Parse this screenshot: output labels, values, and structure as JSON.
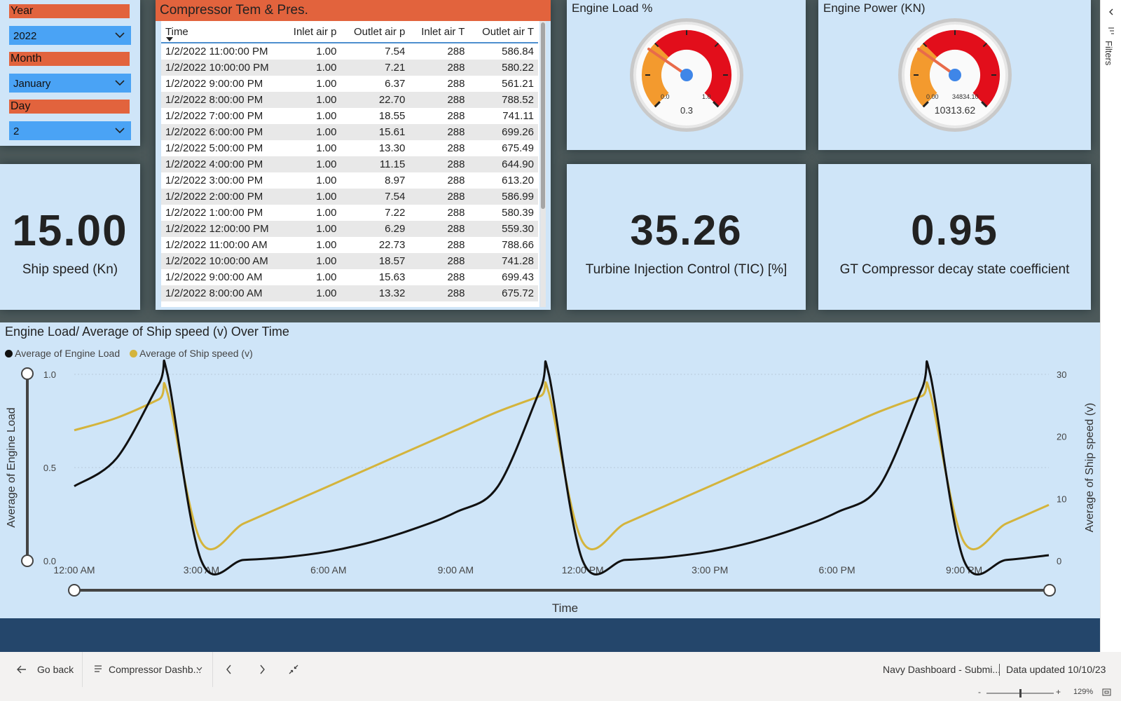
{
  "slicers": {
    "year_label": "Year",
    "year_value": "2022",
    "month_label": "Month",
    "month_value": "January",
    "day_label": "Day",
    "day_value": "2"
  },
  "ship_speed": {
    "value": "15.00",
    "label": "Ship speed (Kn)"
  },
  "compressor_table": {
    "title": "Compressor Tem & Pres.",
    "columns": [
      "Time",
      "Inlet air p",
      "Outlet air p",
      "Inlet air T",
      "Outlet air T"
    ],
    "rows": [
      [
        "1/2/2022 11:00:00 PM",
        "1.00",
        "7.54",
        "288",
        "586.84"
      ],
      [
        "1/2/2022 10:00:00 PM",
        "1.00",
        "7.21",
        "288",
        "580.22"
      ],
      [
        "1/2/2022 9:00:00 PM",
        "1.00",
        "6.37",
        "288",
        "561.21"
      ],
      [
        "1/2/2022 8:00:00 PM",
        "1.00",
        "22.70",
        "288",
        "788.52"
      ],
      [
        "1/2/2022 7:00:00 PM",
        "1.00",
        "18.55",
        "288",
        "741.11"
      ],
      [
        "1/2/2022 6:00:00 PM",
        "1.00",
        "15.61",
        "288",
        "699.26"
      ],
      [
        "1/2/2022 5:00:00 PM",
        "1.00",
        "13.30",
        "288",
        "675.49"
      ],
      [
        "1/2/2022 4:00:00 PM",
        "1.00",
        "11.15",
        "288",
        "644.90"
      ],
      [
        "1/2/2022 3:00:00 PM",
        "1.00",
        "8.97",
        "288",
        "613.20"
      ],
      [
        "1/2/2022 2:00:00 PM",
        "1.00",
        "7.54",
        "288",
        "586.99"
      ],
      [
        "1/2/2022 1:00:00 PM",
        "1.00",
        "7.22",
        "288",
        "580.39"
      ],
      [
        "1/2/2022 12:00:00 PM",
        "1.00",
        "6.29",
        "288",
        "559.30"
      ],
      [
        "1/2/2022 11:00:00 AM",
        "1.00",
        "22.73",
        "288",
        "788.66"
      ],
      [
        "1/2/2022 10:00:00 AM",
        "1.00",
        "18.57",
        "288",
        "741.28"
      ],
      [
        "1/2/2022 9:00:00 AM",
        "1.00",
        "15.63",
        "288",
        "699.43"
      ],
      [
        "1/2/2022 8:00:00 AM",
        "1.00",
        "13.32",
        "288",
        "675.72"
      ]
    ]
  },
  "engine_load_gauge": {
    "title": "Engine Load %",
    "min": "0.0",
    "max": "1.0",
    "value_label": "0.3",
    "value": 0.3
  },
  "engine_power_gauge": {
    "title": "Engine Power (KN)",
    "min": "0.00",
    "max": "34834.10",
    "value_label": "10313.62",
    "value": 10313.62,
    "max_value": 34834.1
  },
  "tic_card": {
    "value": "35.26",
    "label": "Turbine Injection Control (TIC) [%]"
  },
  "decay_card": {
    "value": "0.95",
    "label": "GT Compressor decay state coefficient"
  },
  "chart_data": {
    "type": "line",
    "title": "Engine Load/ Average of Ship speed (v) Over Time",
    "xlabel": "Time",
    "ylabel_left": "Average of Engine Load",
    "ylabel_right": "Average of Ship speed (v)",
    "x_ticks": [
      "12:00 AM",
      "3:00 AM",
      "6:00 AM",
      "9:00 AM",
      "12:00 PM",
      "3:00 PM",
      "6:00 PM",
      "9:00 PM"
    ],
    "y_left_ticks": [
      "1.0",
      "0.5",
      "0.0"
    ],
    "y_right_ticks": [
      "30",
      "20",
      "10",
      "0"
    ],
    "ylim_left": [
      0,
      1
    ],
    "ylim_right": [
      0,
      30
    ],
    "x_hours": [
      0,
      1,
      2,
      2.2,
      3,
      4,
      5,
      6,
      7,
      8,
      9,
      10,
      11,
      11.2,
      12,
      13,
      14,
      15,
      16,
      17,
      18,
      19,
      20,
      20.2,
      21,
      22,
      23
    ],
    "series": [
      {
        "name": "Average of Engine Load",
        "color": "#111111",
        "values": [
          0.4,
          0.55,
          0.95,
          1.0,
          0.0,
          0.005,
          0.02,
          0.05,
          0.1,
          0.17,
          0.26,
          0.4,
          0.92,
          1.0,
          0.0,
          0.005,
          0.02,
          0.05,
          0.1,
          0.17,
          0.26,
          0.4,
          0.92,
          1.0,
          0.0,
          0.005,
          0.03
        ]
      },
      {
        "name": "Average of Ship speed (v)",
        "color": "#d4b43c",
        "values": [
          21,
          23,
          26,
          27,
          3,
          6,
          9,
          12,
          15,
          18,
          21,
          24,
          26.5,
          27,
          3,
          6,
          9,
          12,
          15,
          18,
          21,
          24,
          26.5,
          27,
          3,
          6,
          9
        ]
      }
    ],
    "legend_position": "top-left",
    "grid": true
  },
  "footer": {
    "go_back": "Go back",
    "page_name": "Compressor Dashb...",
    "report_name": "Navy Dashboard - Submi...",
    "data_updated": "Data updated 10/10/23",
    "zoom": "129%",
    "filters_label": "Filters"
  }
}
